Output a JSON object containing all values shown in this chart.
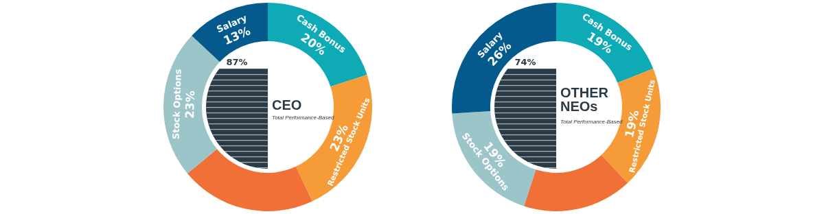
{
  "chart_data": [
    {
      "type": "donut",
      "title": "CEO",
      "subtitle": "Total Performance-Based",
      "annotations": [
        "87%"
      ],
      "categories": [
        "Cash Bonus",
        "Restricted Stock Units",
        null,
        "Stock Options",
        "Salary"
      ],
      "values": [
        20,
        23,
        21,
        23,
        13
      ],
      "value_labels": [
        "20%",
        "23%",
        null,
        "23%",
        "13%"
      ],
      "colors": [
        "#0eaab5",
        "#f59c38",
        "#f07038",
        "#9cc5c9",
        "#045a8d"
      ],
      "legend": false
    },
    {
      "type": "donut",
      "title": "OTHER NEOs",
      "subtitle": "Total Performance-Based",
      "annotations": [
        "74%"
      ],
      "categories": [
        "Cash Bonus",
        "Restricted Stock Units",
        null,
        "Stock Options",
        "Salary"
      ],
      "values": [
        19,
        19,
        17,
        19,
        26
      ],
      "value_labels": [
        "19%",
        "19%",
        null,
        "19%",
        "26%"
      ],
      "colors": [
        "#0eaab5",
        "#f59c38",
        "#f07038",
        "#9cc5c9",
        "#045a8d"
      ],
      "legend": false
    }
  ]
}
